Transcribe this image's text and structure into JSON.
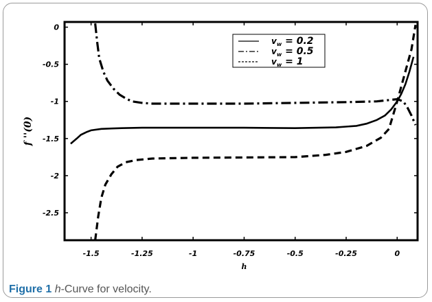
{
  "caption": {
    "label": "Figure 1",
    "italic_part": "h",
    "rest": "-Curve for velocity",
    "period": "."
  },
  "chart_data": {
    "type": "line",
    "xlabel": "h",
    "ylabel": "f ''(0)",
    "xlim": [
      -1.63,
      0.1
    ],
    "ylim": [
      -2.87,
      0.07
    ],
    "xticks": [
      -1.5,
      -1.25,
      -1,
      -0.75,
      -0.5,
      -0.25,
      0
    ],
    "xtick_labels": [
      "-1.5",
      "-1.25",
      "-1",
      "-0.75",
      "-0.5",
      "-0.25",
      "0"
    ],
    "yticks": [
      0,
      -0.5,
      -1,
      -1.5,
      -2,
      -2.5
    ],
    "ytick_labels": [
      "0",
      "-0.5",
      "-1",
      "-1.5",
      "-2",
      "-2.5"
    ],
    "grid": false,
    "legend_position": "top-center",
    "series": [
      {
        "name": "v_w = 0.2",
        "legend_var": "v",
        "legend_sub": "w",
        "legend_value": "= 0.2",
        "dash": "solid",
        "x": [
          -1.6,
          -1.57,
          -1.55,
          -1.52,
          -1.5,
          -1.45,
          -1.4,
          -1.35,
          -1.25,
          -1.0,
          -0.75,
          -0.5,
          -0.3,
          -0.2,
          -0.15,
          -0.1,
          -0.06,
          -0.03,
          0.0,
          0.02,
          0.04,
          0.06,
          0.08
        ],
        "y": [
          -1.57,
          -1.5,
          -1.45,
          -1.41,
          -1.39,
          -1.37,
          -1.365,
          -1.36,
          -1.355,
          -1.355,
          -1.355,
          -1.36,
          -1.35,
          -1.33,
          -1.3,
          -1.25,
          -1.19,
          -1.11,
          -1.0,
          -0.9,
          -0.77,
          -0.6,
          -0.4
        ]
      },
      {
        "name": "v_w = 0.5",
        "legend_var": "v",
        "legend_sub": "w",
        "legend_value": "= 0.5",
        "dash": "dashdot",
        "x": [
          -1.48,
          -1.47,
          -1.46,
          -1.44,
          -1.42,
          -1.39,
          -1.36,
          -1.33,
          -1.3,
          -1.25,
          -1.2,
          -1.0,
          -0.75,
          -0.5,
          -0.25,
          -0.1,
          -0.05,
          0.0,
          0.03,
          0.05,
          0.07,
          0.09
        ],
        "y": [
          0.05,
          -0.2,
          -0.42,
          -0.6,
          -0.72,
          -0.83,
          -0.91,
          -0.96,
          -1.0,
          -1.02,
          -1.03,
          -1.03,
          -1.03,
          -1.02,
          -1.01,
          -1.0,
          -0.985,
          -0.97,
          -1.0,
          -1.08,
          -1.19,
          -1.32
        ]
      },
      {
        "name": "v_w = 1",
        "legend_var": "v",
        "legend_sub": "w",
        "legend_value": "= 1",
        "dash": "dashed",
        "x": [
          -1.48,
          -1.465,
          -1.45,
          -1.43,
          -1.4,
          -1.37,
          -1.33,
          -1.28,
          -1.2,
          -1.0,
          -0.75,
          -0.5,
          -0.35,
          -0.25,
          -0.15,
          -0.08,
          -0.04,
          0.0,
          0.03,
          0.05,
          0.07,
          0.09
        ],
        "y": [
          -2.87,
          -2.55,
          -2.3,
          -2.12,
          -1.98,
          -1.88,
          -1.82,
          -1.79,
          -1.77,
          -1.76,
          -1.755,
          -1.75,
          -1.72,
          -1.68,
          -1.6,
          -1.49,
          -1.37,
          -1.0,
          -0.7,
          -0.5,
          -0.3,
          0.03
        ]
      }
    ]
  }
}
